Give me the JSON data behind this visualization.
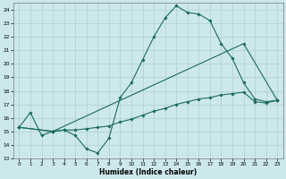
{
  "title": "",
  "xlabel": "Humidex (Indice chaleur)",
  "xlim": [
    -0.5,
    23.5
  ],
  "ylim": [
    13,
    24.5
  ],
  "xticks": [
    0,
    1,
    2,
    3,
    4,
    5,
    6,
    7,
    8,
    9,
    10,
    11,
    12,
    13,
    14,
    15,
    16,
    17,
    18,
    19,
    20,
    21,
    22,
    23
  ],
  "yticks": [
    13,
    14,
    15,
    16,
    17,
    18,
    19,
    20,
    21,
    22,
    23,
    24
  ],
  "background_color": "#cde8ec",
  "grid_color": "#aacdd4",
  "line_color": "#1a6b5a",
  "line1_x": [
    0,
    1,
    2,
    3,
    4,
    5,
    6,
    7,
    8,
    9,
    10,
    11,
    12,
    13,
    14,
    15,
    16,
    17,
    18,
    19,
    20,
    21,
    22,
    23
  ],
  "line1_y": [
    15.3,
    16.4,
    14.7,
    15.0,
    15.1,
    14.7,
    13.7,
    13.4,
    14.5,
    17.5,
    18.6,
    20.3,
    22.0,
    23.4,
    24.3,
    23.8,
    23.7,
    23.2,
    21.5,
    20.4,
    18.6,
    17.4,
    17.2,
    17.3
  ],
  "line2_x": [
    0,
    3,
    4,
    5,
    6,
    7,
    8,
    9,
    10,
    11,
    12,
    13,
    14,
    15,
    16,
    17,
    18,
    19,
    20,
    21,
    22,
    23
  ],
  "line2_y": [
    15.3,
    15.0,
    15.1,
    15.1,
    15.2,
    15.3,
    15.4,
    15.7,
    15.9,
    16.2,
    16.5,
    16.7,
    17.0,
    17.2,
    17.4,
    17.5,
    17.7,
    17.8,
    17.9,
    17.2,
    17.1,
    17.3
  ],
  "line3_x": [
    0,
    3,
    20,
    23
  ],
  "line3_y": [
    15.3,
    15.0,
    21.5,
    17.3
  ]
}
